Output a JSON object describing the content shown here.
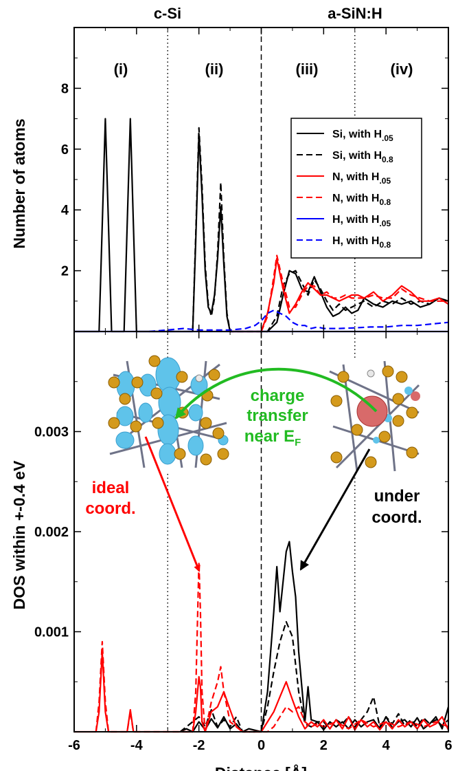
{
  "chart_data": {
    "type": "line",
    "xlabel": "Distance [Å]",
    "xlim": [
      -6,
      6
    ],
    "xticks": [
      "-6",
      "-4",
      "-2",
      "0",
      "2",
      "4",
      "6"
    ],
    "headers": {
      "left": "c-Si",
      "right": "a-SiN:H"
    },
    "regions": [
      "(i)",
      "(ii)",
      "(iii)",
      "(iv)"
    ],
    "panels": [
      {
        "id": "top",
        "ylabel": "Number of atoms",
        "ylim": [
          0,
          10
        ],
        "yticks": [
          "2",
          "4",
          "6",
          "8"
        ],
        "legend": {
          "position": "top-right",
          "entries": [
            {
              "base": "Si, with H",
              "sub": ".05",
              "color": "#000000",
              "dash": "solid"
            },
            {
              "base": "Si, with H",
              "sub": "0.8",
              "color": "#000000",
              "dash": "dashed"
            },
            {
              "base": "N, with H",
              "sub": ".05",
              "color": "#ff0000",
              "dash": "solid"
            },
            {
              "base": "N, with H",
              "sub": "0.8",
              "color": "#ff0000",
              "dash": "dashed"
            },
            {
              "base": "H, with H",
              "sub": ".05",
              "color": "#0000ff",
              "dash": "solid"
            },
            {
              "base": "H, with H",
              "sub": "0.8",
              "color": "#0000ff",
              "dash": "dashed"
            }
          ]
        },
        "series": [
          {
            "name": "Si, with H.05",
            "color": "#000000",
            "dash": "solid",
            "x": [
              -6.0,
              -5.2,
              -5.1,
              -5.0,
              -4.9,
              -4.8,
              -4.6,
              -4.5,
              -4.4,
              -4.3,
              -4.2,
              -4.1,
              -4.0,
              -2.5,
              -2.2,
              -2.1,
              -2.0,
              -1.9,
              -1.8,
              -1.7,
              -1.6,
              -1.5,
              -1.4,
              -1.3,
              -1.2,
              -1.1,
              -1.0,
              -0.8,
              -0.6,
              0.0,
              0.2,
              0.5,
              0.7,
              0.9,
              1.1,
              1.3,
              1.5,
              1.7,
              1.9,
              2.1,
              2.3,
              2.5,
              2.7,
              2.9,
              3.1,
              3.3,
              3.6,
              3.9,
              4.2,
              4.5,
              4.8,
              5.1,
              5.4,
              5.7,
              6.0
            ],
            "y": [
              0,
              0,
              3.5,
              7.0,
              3.5,
              0,
              0,
              0,
              0,
              3.5,
              7.0,
              3.5,
              0,
              0,
              0,
              3.0,
              6.5,
              4.5,
              2.0,
              0.8,
              0.6,
              1.2,
              2.4,
              4.1,
              2.2,
              0.5,
              0,
              0,
              0,
              0,
              0,
              0.3,
              1.2,
              2.0,
              1.9,
              1.4,
              1.3,
              1.8,
              1.3,
              0.8,
              0.5,
              0.6,
              0.8,
              0.6,
              0.7,
              1.1,
              0.9,
              0.8,
              1.0,
              0.9,
              1.0,
              0.8,
              0.9,
              1.1,
              1.0
            ]
          },
          {
            "name": "Si, with H0.8",
            "color": "#000000",
            "dash": "dashed",
            "x": [
              -2.2,
              -2.1,
              -2.0,
              -1.9,
              -1.8,
              -1.7,
              -1.6,
              -1.5,
              -1.4,
              -1.3,
              -1.2,
              -1.1,
              -1.0,
              -0.8,
              0.0,
              0.2,
              0.5,
              0.7,
              0.9,
              1.1,
              1.3,
              1.5,
              1.7,
              1.9,
              2.1,
              2.3,
              2.5,
              2.7,
              2.9,
              3.1,
              3.3,
              3.6,
              3.9,
              4.2,
              4.5,
              4.8,
              5.1,
              5.4,
              5.7,
              6.0
            ],
            "y": [
              0,
              3.2,
              6.7,
              4.8,
              2.2,
              0.9,
              0.5,
              1.1,
              2.6,
              4.9,
              2.4,
              0.6,
              0,
              0,
              0,
              0,
              0.5,
              1.5,
              1.9,
              2.0,
              1.6,
              1.2,
              1.7,
              1.4,
              1.0,
              0.7,
              0.9,
              0.7,
              0.8,
              0.9,
              1.0,
              0.8,
              1.0,
              0.9,
              1.1,
              0.9,
              1.0,
              0.9,
              1.1,
              1.0
            ]
          },
          {
            "name": "N, with H.05",
            "color": "#ff0000",
            "dash": "solid",
            "x": [
              -1.0,
              -0.5,
              0.0,
              0.2,
              0.4,
              0.5,
              0.7,
              0.9,
              1.1,
              1.3,
              1.5,
              1.7,
              1.9,
              2.1,
              2.3,
              2.5,
              2.7,
              2.9,
              3.1,
              3.3,
              3.6,
              3.9,
              4.2,
              4.5,
              4.8,
              5.1,
              5.4,
              5.7,
              6.0
            ],
            "y": [
              0,
              0,
              0,
              0.6,
              1.6,
              2.4,
              1.4,
              0.6,
              0.9,
              1.3,
              1.6,
              1.4,
              1.2,
              1.2,
              1.1,
              1.0,
              1.1,
              1.2,
              1.2,
              1.1,
              1.3,
              1.0,
              1.2,
              1.5,
              1.3,
              1.0,
              1.0,
              1.1,
              0.9
            ]
          },
          {
            "name": "N, with H0.8",
            "color": "#ff0000",
            "dash": "dashed",
            "x": [
              0.0,
              0.2,
              0.4,
              0.5,
              0.7,
              0.9,
              1.1,
              1.3,
              1.5,
              1.7,
              1.9,
              2.1,
              2.3,
              2.5,
              2.7,
              2.9,
              3.1,
              3.3,
              3.6,
              3.9,
              4.2,
              4.5,
              4.8,
              5.1,
              5.4,
              5.7,
              6.0
            ],
            "y": [
              0,
              0.5,
              1.8,
              2.5,
              1.6,
              0.8,
              0.8,
              1.2,
              1.5,
              1.5,
              1.2,
              1.3,
              1.1,
              1.1,
              1.2,
              1.1,
              1.1,
              1.1,
              1.2,
              1.1,
              1.1,
              1.4,
              1.2,
              1.1,
              1.0,
              1.0,
              1.0
            ]
          },
          {
            "name": "H, with H.05",
            "color": "#0000ff",
            "dash": "solid",
            "x": [
              -6.0,
              6.0
            ],
            "y": [
              0,
              0
            ]
          },
          {
            "name": "H, with H0.8",
            "color": "#0000ff",
            "dash": "dashed",
            "x": [
              -3.6,
              -3.0,
              -2.5,
              -2.0,
              -1.0,
              -0.5,
              -0.2,
              0.0,
              0.2,
              0.4,
              0.6,
              0.8,
              1.0,
              1.2,
              1.4,
              1.6,
              1.8,
              2.0,
              2.5,
              3.0,
              3.5,
              4.0,
              4.5,
              5.0,
              5.5,
              6.0
            ],
            "y": [
              0,
              0.05,
              0.1,
              0.05,
              0.05,
              0.1,
              0.2,
              0.35,
              0.6,
              0.7,
              0.6,
              0.5,
              0.3,
              0.2,
              0.2,
              0.1,
              0.15,
              0.1,
              0.1,
              0.12,
              0.15,
              0.15,
              0.2,
              0.2,
              0.25,
              0.3
            ]
          }
        ]
      },
      {
        "id": "bottom",
        "ylabel": "DOS within +-0.4 eV",
        "ylim": [
          0,
          0.004
        ],
        "yticks": [
          "0.001",
          "0.002",
          "0.003"
        ],
        "series": [
          {
            "name": "Si, with H.05",
            "color": "#000000",
            "dash": "solid",
            "x": [
              -2.6,
              -2.4,
              -2.2,
              -2.0,
              -1.8,
              -1.6,
              -1.4,
              -1.2,
              -1.0,
              -0.8,
              -0.6,
              -0.4,
              0.0,
              0.2,
              0.4,
              0.5,
              0.6,
              0.8,
              0.9,
              1.0,
              1.1,
              1.2,
              1.4,
              1.5,
              1.6,
              1.8,
              2.0,
              2.2,
              2.4,
              2.6,
              2.8,
              3.0,
              3.2,
              3.4,
              3.6,
              3.8,
              4.0,
              4.2,
              4.4,
              4.6,
              4.8,
              5.0,
              5.2,
              5.4,
              5.6,
              5.8,
              6.0
            ],
            "y": [
              0,
              3e-05,
              0,
              0.0001,
              2e-05,
              0.00013,
              4e-05,
              0.00015,
              3e-05,
              8e-05,
              0,
              3e-05,
              0,
              0.0004,
              0.0012,
              0.00165,
              0.0012,
              0.0018,
              0.0019,
              0.0016,
              0.00135,
              0.0008,
              0.0001,
              0.00045,
              0.00012,
              0.0001,
              2e-05,
              0.0001,
              5e-05,
              0.0001,
              3e-05,
              0.00012,
              5e-05,
              0.0001,
              0.00012,
              3e-05,
              0.00015,
              4e-05,
              0.0001,
              0.00012,
              5e-05,
              0.00014,
              3e-05,
              8e-05,
              0.00015,
              3e-05,
              0.00025
            ]
          },
          {
            "name": "Si, with H0.8",
            "color": "#000000",
            "dash": "dashed",
            "x": [
              -2.6,
              -2.2,
              -2.0,
              -1.8,
              -1.6,
              -1.4,
              -1.2,
              -1.0,
              -0.8,
              -0.6,
              0.0,
              0.2,
              0.4,
              0.6,
              0.8,
              1.0,
              1.2,
              1.4,
              1.6,
              1.8,
              2.0,
              2.2,
              2.4,
              2.6,
              2.8,
              3.0,
              3.2,
              3.4,
              3.6,
              3.8,
              4.0,
              4.2,
              4.4,
              4.6,
              4.8,
              5.0,
              5.2,
              5.4,
              5.6,
              5.8,
              6.0
            ],
            "y": [
              0,
              0.0001,
              0.00015,
              5e-05,
              0.00022,
              5e-05,
              0.00012,
              5e-05,
              0.00015,
              0,
              0,
              0.00025,
              0.0006,
              0.0009,
              0.0011,
              0.00095,
              0.0004,
              8e-05,
              5e-05,
              0.0001,
              0.0001,
              3e-05,
              0.00012,
              8e-05,
              0.00015,
              5e-05,
              0.00012,
              0.0002,
              0.00035,
              5e-05,
              0.00015,
              8e-05,
              0.00018,
              6e-05,
              0.00012,
              5e-05,
              0.00014,
              8e-05,
              0.00012,
              6e-05,
              0.00012
            ]
          },
          {
            "name": "N, with H.05",
            "color": "#ff0000",
            "dash": "solid",
            "x": [
              -6.0,
              -5.3,
              -5.2,
              -5.1,
              -5.0,
              -4.9,
              -4.5,
              -4.3,
              -4.2,
              -4.1,
              -3.8,
              -3.5,
              -2.2,
              -2.1,
              -2.0,
              -1.95,
              -1.9,
              -1.8,
              -1.6,
              -1.4,
              -1.2,
              -1.0,
              -0.8,
              -0.6,
              0.0,
              0.2,
              0.4,
              0.6,
              0.8,
              1.0,
              1.2,
              1.4,
              1.6,
              1.8,
              2.0,
              2.2,
              2.4,
              2.6,
              2.8,
              3.0,
              3.2,
              3.4,
              3.6,
              3.8,
              4.0,
              4.2,
              4.4,
              4.6,
              4.8,
              5.0,
              5.2,
              5.4,
              5.6,
              5.8,
              6.0
            ],
            "y": [
              0,
              0,
              0.0002,
              0.0008,
              0.0002,
              0,
              0,
              0,
              0.00022,
              0,
              0,
              0,
              0,
              0.0002,
              0.00055,
              0.00045,
              0.0001,
              0,
              0.0002,
              0.00025,
              0.0004,
              0.00022,
              5e-05,
              0,
              0,
              0.0001,
              0.0002,
              0.00035,
              0.0005,
              0.00032,
              0.00015,
              3e-05,
              0.0001,
              5e-05,
              0.00012,
              3e-05,
              0.00012,
              3e-05,
              0.00015,
              2e-05,
              0.00012,
              5e-05,
              0.0001,
              2e-05,
              0.0001,
              3e-05,
              0.00012,
              5e-05,
              0.0001,
              3e-05,
              0.00012,
              5e-05,
              8e-05,
              0.00015,
              2e-05
            ]
          },
          {
            "name": "N, with H0.8",
            "color": "#ff0000",
            "dash": "dashed",
            "x": [
              -5.3,
              -5.2,
              -5.1,
              -5.0,
              -4.9,
              -4.3,
              -4.2,
              -4.1,
              -2.2,
              -2.1,
              -2.0,
              -1.95,
              -1.9,
              -1.8,
              -1.6,
              -1.4,
              -1.3,
              -1.2,
              -1.0,
              -0.8,
              -0.6,
              0.2,
              0.4,
              0.6,
              0.8,
              1.0,
              1.2,
              1.4,
              1.6,
              1.8,
              2.0,
              2.4,
              2.8,
              3.2,
              3.6,
              4.0,
              4.4,
              4.8,
              5.2,
              5.6,
              6.0
            ],
            "y": [
              0,
              0.0003,
              0.0009,
              0.0003,
              0,
              0,
              0.0002,
              0,
              0,
              0.0004,
              0.0017,
              0.0012,
              0.0004,
              0,
              0.0003,
              0.0005,
              0.00065,
              0.0004,
              0.0001,
              5e-05,
              0,
              0,
              5e-05,
              0.00015,
              0.00025,
              0.0002,
              0.00025,
              0.0001,
              5e-05,
              8e-05,
              5e-05,
              0.0001,
              3e-05,
              0.00012,
              5e-05,
              0.0001,
              5e-05,
              0.0001,
              5e-05,
              0.0001,
              5e-05
            ]
          }
        ]
      }
    ],
    "annotations": {
      "charge_transfer": [
        "charge",
        "transfer",
        "near E",
        "F"
      ],
      "ideal_coord": [
        "ideal",
        "coord."
      ],
      "under_coord": [
        "under",
        "coord."
      ]
    },
    "colors": {
      "ideal_arrow": "#ff0000",
      "under_arrow": "#000000",
      "charge_arrow": "#22bb22"
    }
  }
}
